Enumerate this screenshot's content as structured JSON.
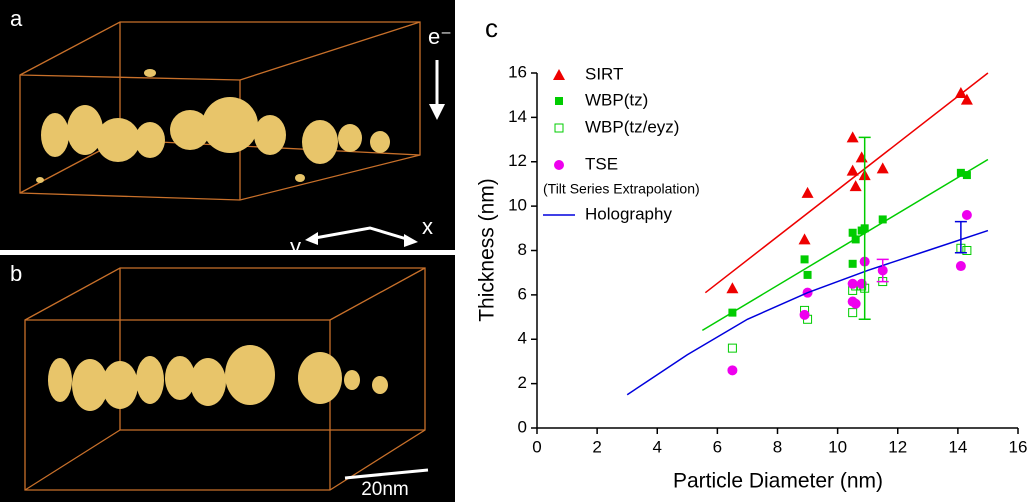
{
  "panels": {
    "a": {
      "label": "a",
      "beam": "e⁻",
      "x_axis": "x",
      "y_axis": "y"
    },
    "b": {
      "label": "b",
      "scale_bar": "20nm"
    }
  },
  "chart_data": {
    "type": "scatter",
    "panel_label": "c",
    "x_label": "Particle Diameter (nm)",
    "y_label": "Thickness (nm)",
    "xlim": [
      0,
      16
    ],
    "xticks": [
      0,
      2,
      4,
      6,
      8,
      10,
      12,
      14,
      16
    ],
    "ylim": [
      0,
      16
    ],
    "yticks": [
      0,
      2,
      4,
      6,
      8,
      10,
      12,
      14,
      16
    ],
    "series": [
      {
        "name": "SIRT",
        "color": "#ee0000",
        "marker": "triangle",
        "x": [
          6.5,
          8.9,
          9.0,
          10.5,
          10.5,
          10.6,
          10.8,
          10.9,
          11.5,
          14.1,
          14.3
        ],
        "values": [
          6.3,
          8.5,
          10.6,
          13.1,
          11.6,
          10.9,
          12.2,
          11.4,
          11.7,
          15.1,
          14.8
        ]
      },
      {
        "name": "WBP(tz)",
        "color": "#00cc00",
        "marker": "square",
        "x": [
          6.5,
          8.9,
          9.0,
          10.5,
          10.5,
          10.6,
          10.8,
          10.9,
          11.5,
          14.1,
          14.3
        ],
        "values": [
          5.2,
          7.6,
          6.9,
          8.8,
          7.4,
          8.5,
          8.9,
          9.0,
          9.4,
          11.5,
          11.4
        ]
      },
      {
        "name": "WBP(tz/eyz)",
        "color": "#00cc00",
        "marker": "open-square",
        "x": [
          6.5,
          8.9,
          9.0,
          10.5,
          10.5,
          10.6,
          10.8,
          10.9,
          11.5,
          14.1,
          14.3
        ],
        "values": [
          3.6,
          5.3,
          4.9,
          6.2,
          5.2,
          6.4,
          6.4,
          6.3,
          6.6,
          8.1,
          8.0
        ]
      },
      {
        "name": "TSE",
        "color": "#ee00ee",
        "marker": "circle",
        "x": [
          6.5,
          8.9,
          9.0,
          10.5,
          10.5,
          10.6,
          10.8,
          10.9,
          11.5,
          14.1,
          14.3
        ],
        "values": [
          2.6,
          5.1,
          6.1,
          6.5,
          5.7,
          5.6,
          6.5,
          7.5,
          7.1,
          7.3,
          9.6
        ]
      },
      {
        "name": "Holography",
        "color": "#0000dd",
        "marker": "line",
        "x": [
          3,
          5,
          7,
          9,
          11,
          13,
          15
        ],
        "values": [
          1.5,
          3.3,
          4.9,
          6.1,
          7.1,
          8.0,
          8.9
        ]
      }
    ],
    "legend_note": "(Tilt Series Extrapolation)",
    "fits": [
      {
        "color": "#ee0000",
        "x": [
          5.6,
          15
        ],
        "values": [
          6.1,
          16
        ]
      },
      {
        "color": "#00cc00",
        "x": [
          5.5,
          15
        ],
        "values": [
          4.4,
          12.1
        ]
      }
    ],
    "error_bars": [
      {
        "color": "#00cc00",
        "x": 10.9,
        "value": 9.0,
        "error": 4.1
      },
      {
        "color": "#ee00ee",
        "x": 11.5,
        "value": 7.1,
        "error": 0.5
      },
      {
        "color": "#0000dd",
        "x": 14.1,
        "value": 8.6,
        "error": 0.7
      }
    ]
  }
}
